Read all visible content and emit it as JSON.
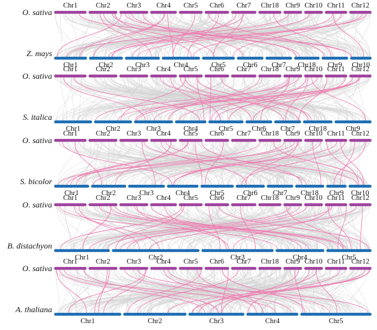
{
  "colors": {
    "rice_bar": "#a0449f",
    "other_bar": "#1f6fb4",
    "background_link": "#d4d4d4",
    "highlight_link": "#ef7ab0"
  },
  "panels": [
    {
      "top_species": "O. sativa",
      "bottom_species": "Z. mays",
      "top_chromosomes": [
        "Chr1",
        "Chr2",
        "Chr3",
        "Chr4",
        "Chr5",
        "Chr6",
        "Chr7",
        "Chr18",
        "Chr9",
        "Chr10",
        "Chr11",
        "Chr12"
      ],
      "bottom_chromosomes": [
        "Chr1",
        "Chr2",
        "Chr3",
        "Chr4",
        "Chr5",
        "Chr6",
        "Chr7",
        "Chr18",
        "Chr9",
        "Chr10"
      ]
    },
    {
      "top_species": "O. sativa",
      "bottom_species": "S. italica",
      "top_chromosomes": [
        "Chr1",
        "Chr2",
        "Chr3",
        "Chr4",
        "Chr5",
        "Chr6",
        "Chr7",
        "Chr18",
        "Chr9",
        "Chr10",
        "Chr11",
        "Chr12"
      ],
      "bottom_chromosomes": [
        "Chr1",
        "Chr2",
        "Chr3",
        "Chr4",
        "Chr5",
        "Chr6",
        "Chr7",
        "Chr18",
        "Chr9"
      ]
    },
    {
      "top_species": "O. sativa",
      "bottom_species": "S. bicolor",
      "top_chromosomes": [
        "Chr1",
        "Chr2",
        "Chr3",
        "Chr4",
        "Chr5",
        "Chr6",
        "Chr7",
        "Chr18",
        "Chr9",
        "Chr10",
        "Chr11",
        "Chr12"
      ],
      "bottom_chromosomes": [
        "Chr1",
        "Chr2",
        "Chr3",
        "Chr4",
        "Chr5",
        "Chr6",
        "Chr7",
        "Chr18",
        "Chr9",
        "Chr10"
      ]
    },
    {
      "top_species": "O. sativa",
      "bottom_species": "B. distachyon",
      "top_chromosomes": [
        "Chr1",
        "Chr2",
        "Chr3",
        "Chr4",
        "Chr5",
        "Chr6",
        "Chr7",
        "Chr18",
        "Chr9",
        "Chr10",
        "Chr11",
        "Chr12"
      ],
      "bottom_chromosomes": [
        "Chr1",
        "Chr2",
        "Chr3",
        "Chr4",
        "Chr5"
      ]
    },
    {
      "top_species": "O. sativa",
      "bottom_species": "A. thaliana",
      "top_chromosomes": [
        "Chr1",
        "Chr2",
        "Chr3",
        "Chr4",
        "Chr5",
        "Chr6",
        "Chr7",
        "Chr18",
        "Chr9",
        "Chr10",
        "Chr11",
        "Chr12"
      ],
      "bottom_chromosomes": [
        "Chr1",
        "Chr2",
        "Chr3",
        "Chr4",
        "Chr5"
      ]
    }
  ]
}
